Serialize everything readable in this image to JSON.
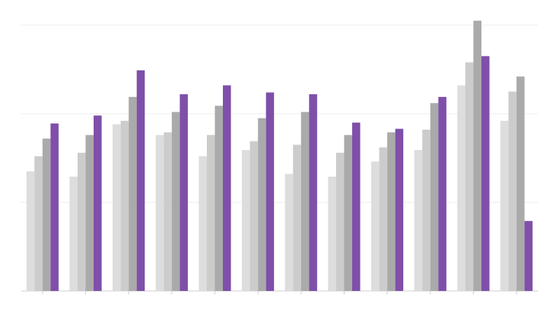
{
  "chart_data": {
    "type": "bar",
    "categories": [
      null,
      null,
      null,
      null,
      null,
      null,
      null,
      null,
      null,
      null,
      null,
      null
    ],
    "series": [
      {
        "color": "#dddddd",
        "values": [
          1.35,
          1.29,
          1.88,
          1.76,
          1.52,
          1.59,
          1.32,
          1.29,
          1.46,
          1.59,
          2.32,
          1.92
        ]
      },
      {
        "color": "#cccccc",
        "values": [
          1.52,
          1.56,
          1.92,
          1.79,
          1.76,
          1.69,
          1.65,
          1.56,
          1.62,
          1.82,
          2.58,
          2.25
        ]
      },
      {
        "color": "#aaaaaa",
        "values": [
          1.72,
          1.76,
          2.19,
          2.02,
          2.09,
          1.95,
          2.02,
          1.76,
          1.79,
          2.12,
          3.05,
          2.42
        ]
      },
      {
        "color": "#7f4fa9",
        "values": [
          1.89,
          1.98,
          2.49,
          2.22,
          2.32,
          2.24,
          2.22,
          1.9,
          1.83,
          2.19,
          2.65,
          0.79
        ]
      }
    ],
    "ylim": [
      0,
      3.1
    ],
    "yticks": [
      0,
      1,
      2,
      3
    ],
    "grid": true
  }
}
